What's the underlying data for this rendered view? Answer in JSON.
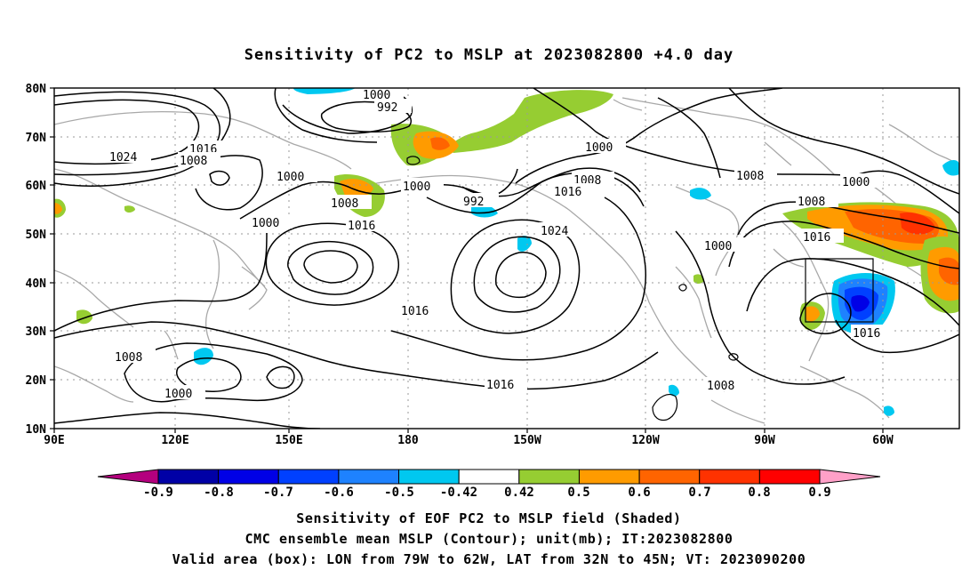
{
  "title": "Sensitivity of PC2 to MSLP at 2023082800 +4.0 day",
  "map": {
    "lon_labels": [
      "90E",
      "120E",
      "150E",
      "180",
      "150W",
      "120W",
      "90W",
      "60W"
    ],
    "lat_labels": [
      "80N",
      "70N",
      "60N",
      "50N",
      "40N",
      "30N",
      "20N",
      "10N"
    ],
    "contour_labels": [
      "1024",
      "1016",
      "1008",
      "1000",
      "992",
      "1000",
      "1000",
      "1000",
      "1008",
      "1016",
      "1016",
      "1008",
      "1016",
      "1000",
      "992",
      "1008",
      "1016",
      "1024",
      "1008",
      "1000",
      "1016",
      "1008",
      "1000",
      "1016",
      "1008"
    ],
    "valid_box": {
      "lon_west": -79,
      "lon_east": -62,
      "lat_south": 32,
      "lat_north": 45
    }
  },
  "colorbar": {
    "labels": [
      "-0.9",
      "-0.8",
      "-0.7",
      "-0.6",
      "-0.5",
      "-0.42",
      "0.42",
      "0.5",
      "0.6",
      "0.7",
      "0.8",
      "0.9"
    ],
    "colors": [
      "#b4007e",
      "#0000a6",
      "#0000e6",
      "#0040ff",
      "#1e82ff",
      "#00c8f0",
      "#ffffff",
      "#96cd32",
      "#ff9b00",
      "#ff6400",
      "#ff3200",
      "#ff0000",
      "#ffa0c8"
    ]
  },
  "captions": {
    "line1": "Sensitivity of EOF PC2 to MSLP field (Shaded)",
    "line2": "CMC ensemble mean MSLP (Contour); unit(mb); IT:2023082800",
    "line3": "Valid area (box): LON from 79W to 62W, LAT from 32N to 45N; VT: 2023090200"
  }
}
